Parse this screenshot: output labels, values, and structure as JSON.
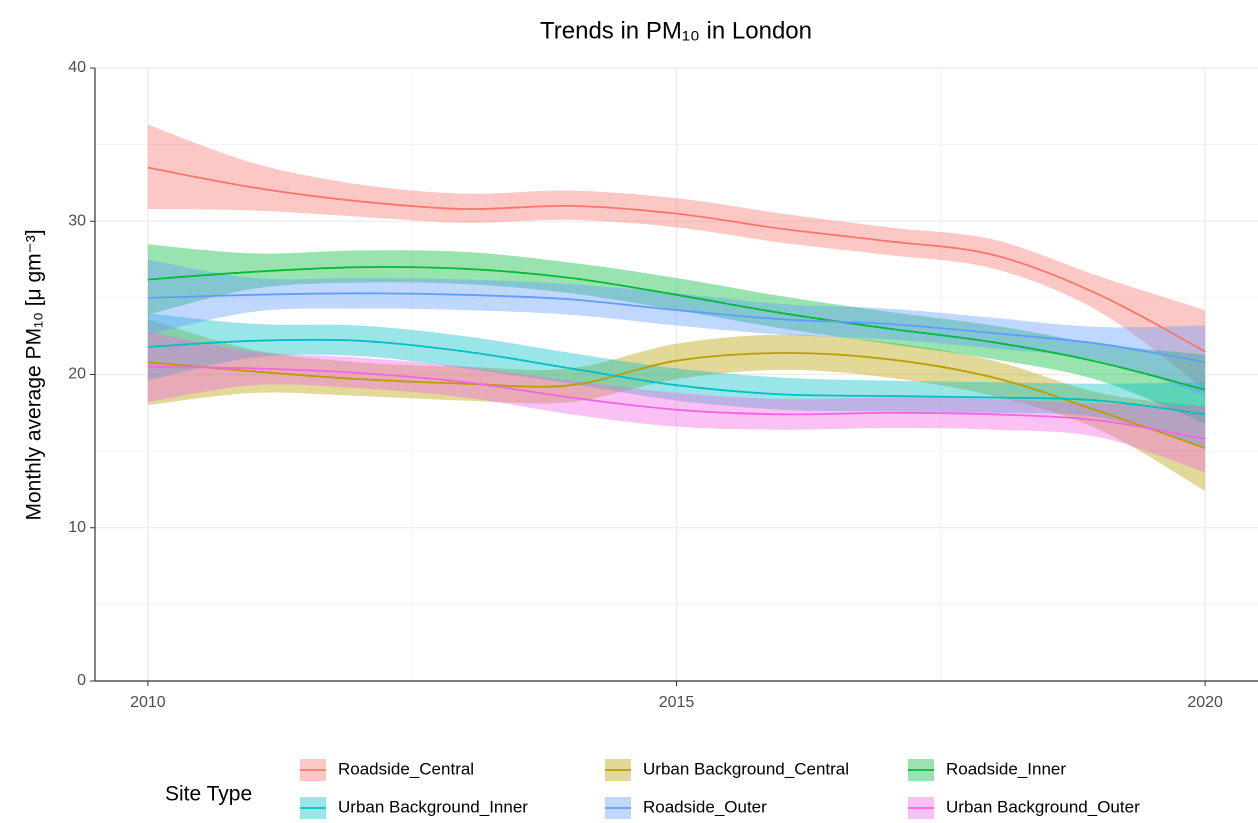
{
  "chart_data": {
    "type": "smooth_band",
    "title": "Trends in PM₁₀ in London",
    "y_label": "Monthly average PM₁₀ [μ gm⁻³]",
    "legend_title": "Site Type",
    "legend_position": "bottom",
    "grid": true,
    "x": [
      2010,
      2011,
      2012,
      2013,
      2014,
      2015,
      2016,
      2017,
      2018,
      2019,
      2020
    ],
    "xlim": [
      2009.5,
      2020.5
    ],
    "xticks": [
      2010,
      2015,
      2020
    ],
    "x_minor_ticks": [
      2012.5,
      2017.5
    ],
    "ylim": [
      0,
      40
    ],
    "yticks": [
      0,
      10,
      20,
      30,
      40
    ],
    "y_minor_ticks": [
      5,
      15,
      25,
      35
    ],
    "series": [
      {
        "name": "Roadside_Central",
        "color": "#f8766d",
        "values": [
          33.5,
          32.2,
          31.3,
          30.8,
          31.0,
          30.5,
          29.5,
          28.7,
          27.8,
          25.2,
          21.5
        ],
        "lower": [
          30.8,
          30.7,
          30.3,
          29.9,
          30.1,
          29.6,
          28.6,
          27.8,
          26.9,
          24.1,
          19.0
        ],
        "upper": [
          36.3,
          33.8,
          32.4,
          31.8,
          32.0,
          31.5,
          30.5,
          29.6,
          28.8,
          26.4,
          24.2
        ]
      },
      {
        "name": "Urban Background_Central",
        "color": "#b79f00",
        "values": [
          20.8,
          20.2,
          19.7,
          19.4,
          19.3,
          20.9,
          21.4,
          21.0,
          19.8,
          17.6,
          15.2
        ],
        "lower": [
          18.0,
          18.8,
          18.6,
          18.3,
          18.2,
          19.7,
          20.3,
          19.8,
          18.6,
          16.4,
          12.4
        ],
        "upper": [
          23.6,
          21.6,
          20.8,
          20.5,
          20.4,
          22.0,
          22.6,
          22.1,
          20.9,
          18.8,
          17.9
        ]
      },
      {
        "name": "Roadside_Inner",
        "color": "#00ba38",
        "values": [
          26.2,
          26.7,
          27.0,
          26.9,
          26.3,
          25.2,
          24.0,
          23.0,
          22.1,
          20.8,
          19.0
        ],
        "lower": [
          23.9,
          25.6,
          26.0,
          25.9,
          25.3,
          24.2,
          23.0,
          22.0,
          21.0,
          19.6,
          16.8
        ],
        "upper": [
          28.5,
          27.9,
          28.1,
          28.0,
          27.3,
          26.3,
          25.1,
          24.1,
          23.2,
          22.0,
          21.3
        ]
      },
      {
        "name": "Urban Background_Inner",
        "color": "#00bfc4",
        "values": [
          21.8,
          22.2,
          22.2,
          21.5,
          20.4,
          19.3,
          18.7,
          18.6,
          18.5,
          18.3,
          17.4
        ],
        "lower": [
          19.6,
          21.1,
          21.2,
          20.4,
          19.4,
          18.3,
          17.7,
          17.6,
          17.5,
          17.2,
          15.3
        ],
        "upper": [
          24.0,
          23.3,
          23.2,
          22.5,
          21.4,
          20.4,
          19.8,
          19.6,
          19.5,
          19.4,
          19.5
        ]
      },
      {
        "name": "Roadside_Outer",
        "color": "#619cff",
        "values": [
          25.0,
          25.2,
          25.3,
          25.2,
          24.9,
          24.2,
          23.6,
          23.3,
          22.7,
          22.0,
          20.8
        ],
        "lower": [
          22.6,
          24.1,
          24.3,
          24.2,
          23.9,
          23.2,
          22.6,
          22.3,
          21.7,
          20.9,
          18.6
        ],
        "upper": [
          27.5,
          26.3,
          26.3,
          26.2,
          25.9,
          25.3,
          24.6,
          24.3,
          23.7,
          23.1,
          23.2
        ]
      },
      {
        "name": "Urban Background_Outer",
        "color": "#f564e3",
        "values": [
          20.5,
          20.4,
          20.1,
          19.5,
          18.5,
          17.7,
          17.4,
          17.5,
          17.4,
          17.0,
          15.8
        ],
        "lower": [
          18.2,
          19.3,
          19.1,
          18.5,
          17.4,
          16.6,
          16.4,
          16.5,
          16.4,
          15.9,
          13.6
        ],
        "upper": [
          22.8,
          21.5,
          21.1,
          20.5,
          19.6,
          18.8,
          18.4,
          18.5,
          18.4,
          18.1,
          18.0
        ]
      }
    ]
  }
}
